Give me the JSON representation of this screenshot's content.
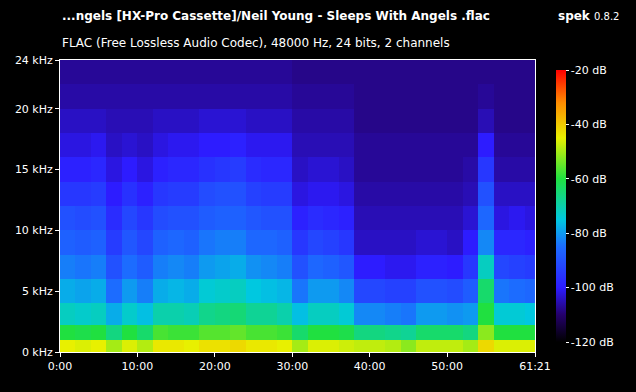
{
  "chart_data": {
    "type": "heatmap",
    "title": "...ngels [HX-Pro Cassette]/Neil Young - Sleeps With Angels .flac",
    "subtitle": "FLAC (Free Lossless Audio Codec), 48000 Hz, 24 bits, 2 channels",
    "annotations": [
      {
        "text": "spek"
      },
      {
        "text": "0.8.2"
      }
    ],
    "x": [
      1,
      3,
      5,
      7,
      9,
      11,
      13,
      15,
      17,
      19,
      21,
      23,
      25,
      27,
      29,
      31,
      33,
      35,
      37,
      39,
      41,
      43,
      45,
      47,
      49,
      51,
      53,
      55,
      57,
      59,
      61
    ],
    "y": [
      0.5,
      1.5,
      3,
      5,
      7,
      9,
      11,
      13,
      15,
      17,
      19,
      21,
      23
    ],
    "z": [
      [
        -45,
        -46,
        -45,
        -50,
        -46,
        -49,
        -44,
        -44,
        -45,
        -43,
        -43,
        -42,
        -44,
        -44,
        -45,
        -50,
        -46,
        -46,
        -47,
        -48,
        -48,
        -49,
        -52,
        -48,
        -48,
        -48,
        -50,
        -42,
        -46,
        -46,
        -46
      ],
      [
        -60,
        -61,
        -60,
        -66,
        -60,
        -64,
        -57,
        -58,
        -58,
        -56,
        -56,
        -55,
        -57,
        -57,
        -58,
        -64,
        -60,
        -60,
        -61,
        -66,
        -66,
        -67,
        -68,
        -64,
        -64,
        -64,
        -66,
        -52,
        -60,
        -60,
        -60
      ],
      [
        -72,
        -73,
        -72,
        -78,
        -73,
        -76,
        -70,
        -70,
        -71,
        -67,
        -66,
        -65,
        -68,
        -68,
        -70,
        -76,
        -72,
        -72,
        -74,
        -82,
        -82,
        -83,
        -84,
        -80,
        -80,
        -81,
        -80,
        -60,
        -74,
        -74,
        -75
      ],
      [
        -78,
        -79,
        -78,
        -85,
        -80,
        -83,
        -78,
        -77,
        -78,
        -74,
        -73,
        -72,
        -75,
        -76,
        -77,
        -84,
        -80,
        -80,
        -82,
        -92,
        -92,
        -93,
        -93,
        -90,
        -90,
        -91,
        -88,
        -64,
        -84,
        -85,
        -86
      ],
      [
        -83,
        -84,
        -83,
        -90,
        -85,
        -88,
        -83,
        -82,
        -83,
        -80,
        -79,
        -78,
        -81,
        -82,
        -83,
        -90,
        -86,
        -87,
        -89,
        -100,
        -100,
        -101,
        -101,
        -99,
        -99,
        -100,
        -95,
        -72,
        -92,
        -93,
        -94
      ],
      [
        -87,
        -88,
        -87,
        -94,
        -89,
        -92,
        -87,
        -86,
        -87,
        -84,
        -83,
        -83,
        -86,
        -86,
        -87,
        -95,
        -92,
        -93,
        -95,
        -104,
        -104,
        -104,
        -104,
        -103,
        -103,
        -104,
        -100,
        -82,
        -98,
        -98,
        -99
      ],
      [
        -90,
        -91,
        -90,
        -97,
        -92,
        -95,
        -91,
        -90,
        -90,
        -88,
        -87,
        -87,
        -89,
        -90,
        -90,
        -99,
        -97,
        -98,
        -99,
        -105,
        -105,
        -105,
        -105,
        -105,
        -105,
        -105,
        -103,
        -86,
        -102,
        -101,
        -102
      ],
      [
        -95,
        -95,
        -94,
        -100,
        -96,
        -99,
        -95,
        -94,
        -94,
        -91,
        -90,
        -90,
        -93,
        -94,
        -94,
        -102,
        -101,
        -101,
        -102,
        -106,
        -106,
        -106,
        -106,
        -106,
        -106,
        -106,
        -105,
        -90,
        -104,
        -104,
        -104
      ],
      [
        -99,
        -99,
        -98,
        -102,
        -100,
        -102,
        -99,
        -98,
        -98,
        -96,
        -95,
        -94,
        -97,
        -98,
        -98,
        -104,
        -103,
        -103,
        -104,
        -107,
        -107,
        -107,
        -107,
        -107,
        -107,
        -107,
        -106,
        -95,
        -106,
        -106,
        -106
      ],
      [
        -102,
        -102,
        -101,
        -104,
        -103,
        -104,
        -102,
        -101,
        -101,
        -100,
        -100,
        -99,
        -101,
        -101,
        -101,
        -105,
        -105,
        -105,
        -105,
        -107,
        -107,
        -107,
        -107,
        -107,
        -107,
        -107,
        -107,
        -100,
        -107,
        -107,
        -107
      ],
      [
        -104,
        -104,
        -104,
        -105,
        -105,
        -105,
        -104,
        -104,
        -104,
        -103,
        -103,
        -103,
        -104,
        -104,
        -104,
        -106,
        -106,
        -106,
        -106,
        -108,
        -108,
        -108,
        -108,
        -108,
        -108,
        -108,
        -108,
        -105,
        -108,
        -108,
        -108
      ],
      [
        -106,
        -106,
        -106,
        -106,
        -106,
        -106,
        -106,
        -106,
        -106,
        -106,
        -106,
        -106,
        -106,
        -106,
        -106,
        -107,
        -107,
        -107,
        -107,
        -108,
        -108,
        -108,
        -108,
        -108,
        -108,
        -108,
        -108,
        -107,
        -108,
        -108,
        -108
      ],
      [
        -107,
        -107,
        -107,
        -107,
        -107,
        -107,
        -107,
        -107,
        -107,
        -107,
        -107,
        -107,
        -107,
        -107,
        -107,
        -108,
        -108,
        -108,
        -108,
        -108,
        -108,
        -108,
        -108,
        -108,
        -108,
        -108,
        -108,
        -108,
        -108,
        -108,
        -108
      ]
    ],
    "xlim": [
      0,
      61.35
    ],
    "xticks": [
      {
        "value": 0,
        "label": "0:00"
      },
      {
        "value": 10,
        "label": "10:00"
      },
      {
        "value": 20,
        "label": "20:00"
      },
      {
        "value": 30,
        "label": "30:00"
      },
      {
        "value": 40,
        "label": "40:00"
      },
      {
        "value": 50,
        "label": "50:00"
      },
      {
        "value": 61.35,
        "label": "61:21"
      }
    ],
    "ylim": [
      0,
      24
    ],
    "yticks": [
      {
        "value": 0,
        "label": "0 kHz"
      },
      {
        "value": 5,
        "label": "5 kHz"
      },
      {
        "value": 10,
        "label": "10 kHz"
      },
      {
        "value": 15,
        "label": "15 kHz"
      },
      {
        "value": 20,
        "label": "20 kHz"
      },
      {
        "value": 24,
        "label": "24 kHz"
      }
    ],
    "zlim": [
      -120,
      -20
    ],
    "zticks": [
      {
        "value": -20,
        "label": "-20 dB"
      },
      {
        "value": -40,
        "label": "-40 dB"
      },
      {
        "value": -60,
        "label": "-60 dB"
      },
      {
        "value": -80,
        "label": "-80 dB"
      },
      {
        "value": -100,
        "label": "-100 dB"
      },
      {
        "value": -120,
        "label": "-120 dB"
      }
    ],
    "grid": false
  }
}
